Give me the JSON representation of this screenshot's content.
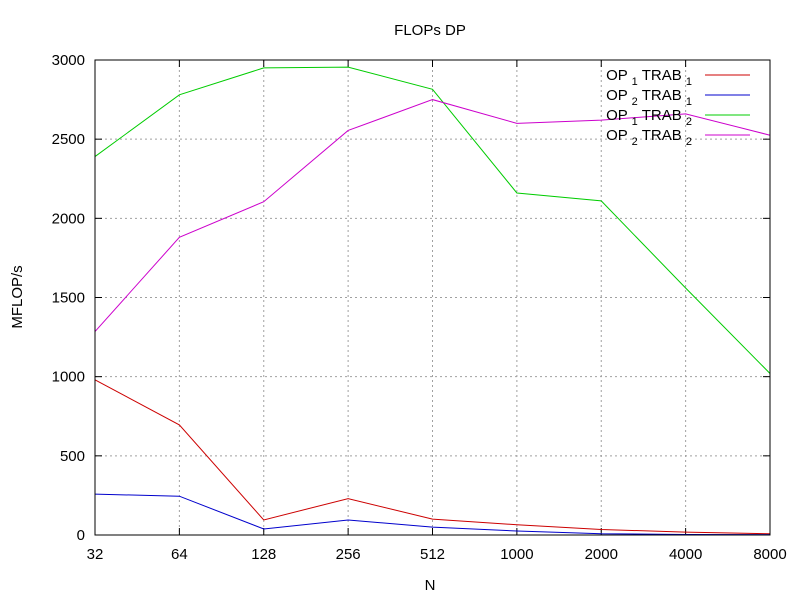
{
  "chart_data": {
    "type": "line",
    "title": "FLOPs DP",
    "xlabel": "N",
    "ylabel": "MFLOP/s",
    "x": [
      "32",
      "64",
      "128",
      "256",
      "512",
      "1000",
      "2000",
      "4000",
      "8000"
    ],
    "ylim": [
      0,
      3000
    ],
    "yticks": [
      "0",
      "500",
      "1000",
      "1500",
      "2000",
      "2500",
      "3000"
    ],
    "grid": true,
    "legend_position": "top-right",
    "series": [
      {
        "name": "OP 1 TRAB 1",
        "op": "1",
        "trab": "1",
        "color": "#cc0000",
        "values": [
          980,
          695,
          95,
          230,
          100,
          65,
          35,
          18,
          8
        ]
      },
      {
        "name": "OP 2 TRAB 1",
        "op": "2",
        "trab": "1",
        "color": "#0000cc",
        "values": [
          258,
          245,
          38,
          95,
          50,
          25,
          8,
          3,
          2
        ]
      },
      {
        "name": "OP 1 TRAB 2",
        "op": "1",
        "trab": "2",
        "color": "#00cc00",
        "values": [
          2390,
          2780,
          2950,
          2955,
          2815,
          2160,
          2110,
          1560,
          1020
        ]
      },
      {
        "name": "OP 2 TRAB 2",
        "op": "2",
        "trab": "2",
        "color": "#cc00cc",
        "values": [
          1285,
          1880,
          2105,
          2555,
          2750,
          2600,
          2620,
          2660,
          2525
        ]
      }
    ]
  }
}
